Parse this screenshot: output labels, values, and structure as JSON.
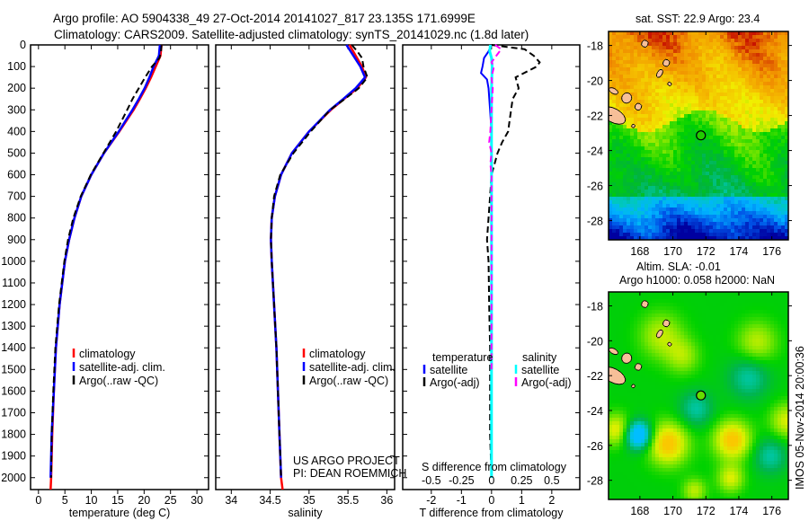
{
  "title": {
    "line1": "Argo profile: AO 5904338_49 27-Oct-2014 20141027_817 23.135S 171.6999E",
    "line2": "Climatology: CARS2009. Satellite-adjusted climatology: synTS_20141029.nc (1.8d later)"
  },
  "credit": {
    "line1": "US ARGO PROJECT",
    "line2": "PI: DEAN ROEMMICH"
  },
  "side_stamp": "IMOS 05-Nov-2014 20:00:36",
  "colors": {
    "climatology": "#ff0000",
    "satellite": "#0000ff",
    "argo": "#000000",
    "sal_satellite": "#00ffff",
    "sal_argo": "#ff00ff"
  },
  "chart_data": [
    {
      "type": "line",
      "id": "temperature",
      "xlabel": "temperature (deg C)",
      "ylabel": "",
      "xlim": [
        -1.5,
        32.2
      ],
      "ylim": [
        2055,
        0
      ],
      "xticks": [
        0,
        5,
        10,
        15,
        20,
        25,
        30
      ],
      "yticks": [
        0,
        100,
        200,
        300,
        400,
        500,
        600,
        700,
        800,
        900,
        1000,
        1100,
        1200,
        1300,
        1400,
        1500,
        1600,
        1700,
        1800,
        1900,
        2000
      ],
      "legend": [
        "climatology",
        "satellite-adj. clim.",
        "Argo(..raw -QC)"
      ],
      "legend_placement": "middle-right",
      "series": [
        {
          "name": "climatology",
          "depth": [
            0,
            50,
            100,
            150,
            200,
            250,
            300,
            400,
            500,
            600,
            700,
            800,
            900,
            1000,
            1200,
            1400,
            1600,
            1800,
            2000,
            2055
          ],
          "values": [
            23.3,
            23.1,
            22.2,
            21.3,
            20.3,
            19.2,
            18.0,
            15.3,
            12.4,
            10.0,
            8.1,
            6.8,
            5.8,
            5.0,
            4.0,
            3.3,
            2.9,
            2.6,
            2.4,
            2.3
          ]
        },
        {
          "name": "satellite-adj. clim.",
          "depth": [
            0,
            50,
            100,
            150,
            200,
            250,
            300,
            400,
            500,
            600,
            700,
            800,
            900,
            1000,
            1200,
            1400,
            1600,
            1800,
            2000
          ],
          "values": [
            23.0,
            22.8,
            21.8,
            21.0,
            20.1,
            19.0,
            17.8,
            15.2,
            12.4,
            10.0,
            8.1,
            6.8,
            5.8,
            5.0,
            4.0,
            3.3,
            2.9,
            2.5,
            2.3
          ]
        },
        {
          "name": "Argo(..raw -QC)",
          "depth": [
            0,
            30,
            60,
            100,
            150,
            200,
            250,
            300,
            400,
            500,
            600,
            700,
            800,
            900,
            1000,
            1200,
            1400,
            1600,
            1800,
            2000
          ],
          "values": [
            23.3,
            23.2,
            22.9,
            21.5,
            20.2,
            19.0,
            17.8,
            16.8,
            14.7,
            12.3,
            9.9,
            8.0,
            6.6,
            5.6,
            4.9,
            3.9,
            3.2,
            2.8,
            2.5,
            2.4
          ]
        }
      ]
    },
    {
      "type": "line",
      "id": "salinity",
      "xlabel": "salinity",
      "xlim": [
        33.8,
        36.1
      ],
      "ylim": [
        2055,
        0
      ],
      "xticks": [
        34,
        34.5,
        35,
        35.5,
        36
      ],
      "legend": [
        "climatology",
        "satellite-adj. clim.",
        "Argo(..raw -QC)"
      ],
      "legend_placement": "middle-right",
      "series": [
        {
          "name": "climatology",
          "depth": [
            0,
            50,
            100,
            150,
            200,
            250,
            300,
            400,
            500,
            600,
            700,
            800,
            900,
            1000,
            1200,
            1400,
            1600,
            1800,
            2000,
            2055
          ],
          "values": [
            35.52,
            35.6,
            35.68,
            35.73,
            35.62,
            35.45,
            35.28,
            35.0,
            34.78,
            34.64,
            34.56,
            34.52,
            34.51,
            34.52,
            34.55,
            34.58,
            34.6,
            34.62,
            34.64,
            34.66
          ]
        },
        {
          "name": "satellite-adj. clim.",
          "depth": [
            0,
            50,
            100,
            150,
            200,
            250,
            300,
            400,
            500,
            600,
            700,
            800,
            900,
            1000,
            1200,
            1400,
            1600,
            1800,
            2000
          ],
          "values": [
            35.48,
            35.57,
            35.66,
            35.72,
            35.6,
            35.44,
            35.27,
            35.0,
            34.78,
            34.64,
            34.56,
            34.52,
            34.51,
            34.52,
            34.55,
            34.58,
            34.6,
            34.62,
            34.64
          ]
        },
        {
          "name": "Argo(..raw -QC)",
          "depth": [
            0,
            30,
            60,
            100,
            150,
            200,
            250,
            300,
            400,
            500,
            600,
            700,
            800,
            900,
            1000,
            1200,
            1400,
            1600,
            1800,
            2000
          ],
          "values": [
            35.55,
            35.62,
            35.68,
            35.7,
            35.75,
            35.64,
            35.46,
            35.27,
            35.02,
            34.8,
            34.63,
            34.55,
            34.52,
            34.51,
            34.52,
            34.55,
            34.58,
            34.6,
            34.62,
            34.64
          ]
        }
      ]
    },
    {
      "type": "line",
      "id": "difference",
      "xlabel": "T difference from climatology",
      "x2label": "S difference from climatology",
      "xlim": [
        -2.95,
        2.93
      ],
      "ylim": [
        2055,
        0
      ],
      "xticks": [
        -2,
        -1,
        0,
        1,
        2
      ],
      "x2ticks": [
        "-0.5",
        "-0.25",
        "0",
        "0.25",
        "0.5"
      ],
      "legend_temperature": {
        "title": "temperature",
        "items": [
          "satellite",
          "Argo(-adj)"
        ]
      },
      "legend_salinity": {
        "title": "salinity",
        "items": [
          "satellite",
          "Argo(-adj)"
        ]
      },
      "legend_placement": "middle",
      "series": [
        {
          "name": "temperature satellite",
          "units": "degC",
          "depth": [
            0,
            30,
            60,
            100,
            130,
            160,
            200,
            300,
            400,
            600,
            800,
            1000,
            1400,
            2000
          ],
          "values": [
            0.0,
            -0.1,
            -0.25,
            -0.3,
            -0.35,
            -0.15,
            -0.1,
            -0.05,
            0.0,
            0.0,
            0.0,
            0.0,
            0.0,
            0.0
          ]
        },
        {
          "name": "temperature Argo(-adj)",
          "units": "degC",
          "depth": [
            0,
            20,
            50,
            80,
            100,
            150,
            200,
            250,
            300,
            350,
            400,
            450,
            500,
            550,
            600,
            700,
            800,
            900,
            1000,
            1200,
            1400,
            1600,
            1800,
            2000
          ],
          "values": [
            0.0,
            1.1,
            1.4,
            1.6,
            1.5,
            0.8,
            0.9,
            0.7,
            0.65,
            0.6,
            0.55,
            0.35,
            0.2,
            0.1,
            0.0,
            -0.05,
            -0.1,
            -0.15,
            -0.1,
            -0.08,
            -0.05,
            -0.05,
            -0.05,
            0.0
          ]
        },
        {
          "name": "salinity satellite",
          "units": "psu",
          "depth": [
            0,
            30,
            60,
            100,
            200,
            400,
            800,
            1200,
            2000
          ],
          "values": [
            -0.01,
            -0.015,
            0.0,
            0.005,
            0.0,
            0.0,
            0.0,
            0.0,
            0.0
          ]
        },
        {
          "name": "salinity Argo(-adj)",
          "units": "psu",
          "depth": [
            0,
            20,
            50,
            80,
            100,
            150,
            200,
            300,
            400,
            450,
            500,
            550,
            600,
            800,
            1000,
            1200,
            1400,
            1500
          ],
          "values": [
            0.03,
            0.08,
            0.04,
            0.0,
            0.02,
            0.0,
            0.01,
            0.0,
            -0.01,
            -0.02,
            0.0,
            -0.01,
            0.0,
            0.0,
            0.0,
            0.0,
            0.0,
            0.0
          ]
        }
      ]
    },
    {
      "type": "heatmap",
      "id": "sst-map",
      "title": "sat. SST: 22.9 Argo: 23.4",
      "xlim": [
        166.1,
        177.0
      ],
      "ylim": [
        -29.1,
        -17.2
      ],
      "xticks": [
        "168",
        "170",
        "172",
        "174",
        "176"
      ],
      "yticks": [
        "-18",
        "-20",
        "-22",
        "-24",
        "-26",
        "-28"
      ],
      "argo_position": {
        "lon": 171.6999,
        "lat": -23.135
      },
      "value_range": [
        19,
        26
      ]
    },
    {
      "type": "heatmap",
      "id": "sla-map",
      "title_line1": "Altim. SLA: -0.01",
      "title_line2": "Argo h1000: 0.058 h2000: NaN",
      "xlim": [
        166.1,
        177.0
      ],
      "ylim": [
        -29.1,
        -17.2
      ],
      "xticks": [
        "168",
        "170",
        "172",
        "174",
        "176"
      ],
      "yticks": [
        "-18",
        "-20",
        "-22",
        "-24",
        "-26",
        "-28"
      ],
      "argo_position": {
        "lon": 171.6999,
        "lat": -23.135
      }
    }
  ]
}
